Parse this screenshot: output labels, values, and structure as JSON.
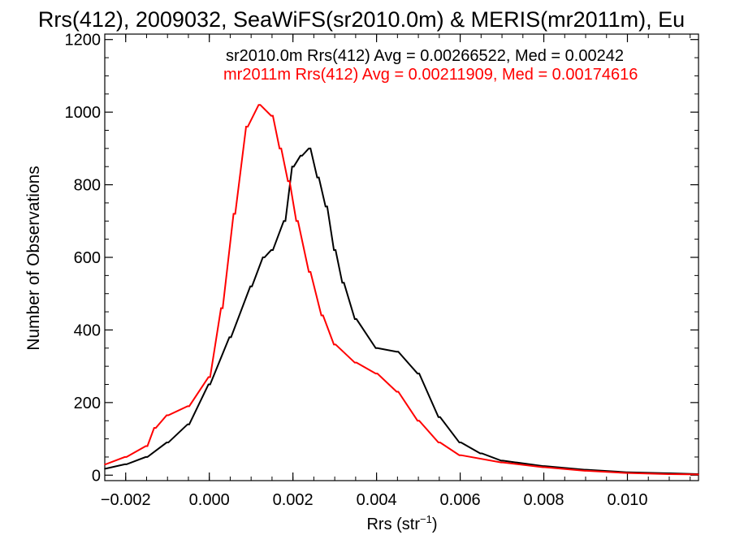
{
  "chart_data": {
    "type": "line",
    "title": "Rrs(412), 2009032, SeaWiFS(sr2010.0m) & MERIS(mr2011m), Eu",
    "xlabel_main": "Rrs (str",
    "xlabel_sup": "−1",
    "xlabel_close": ")",
    "ylabel": "Number of Observations",
    "xlim": [
      -0.0025,
      0.0117
    ],
    "ylim": [
      -15,
      1215
    ],
    "x_ticks": [
      -0.002,
      0.0,
      0.002,
      0.004,
      0.006,
      0.008,
      0.01
    ],
    "x_tick_labels": [
      "−0.002",
      "0.000",
      "0.002",
      "0.004",
      "0.006",
      "0.008",
      "0.010"
    ],
    "y_ticks": [
      0,
      200,
      400,
      600,
      800,
      1000,
      1200
    ],
    "y_tick_labels": [
      "0",
      "200",
      "400",
      "600",
      "800",
      "1000",
      "1200"
    ],
    "grid": false,
    "legend_position": "top-right",
    "annotations": [
      {
        "text": "sr2010.0m Rrs(412) Avg = 0.00266522, Med = 0.00242",
        "color": "#000000"
      },
      {
        "text": "mr2011m Rrs(412) Avg = 0.00211909, Med = 0.00174616",
        "color": "#ff0000"
      }
    ],
    "series": [
      {
        "color": "#000000",
        "x": [
          -0.0025,
          -0.002,
          -0.0015,
          -0.001,
          -0.0005,
          0.0,
          0.0005,
          0.001,
          0.0013,
          0.0015,
          0.0018,
          0.002,
          0.0022,
          0.0024,
          0.0026,
          0.0028,
          0.003,
          0.0032,
          0.0035,
          0.004,
          0.0045,
          0.005,
          0.0055,
          0.006,
          0.0065,
          0.007,
          0.008,
          0.009,
          0.01,
          0.011,
          0.0117
        ],
        "y": [
          18,
          30,
          50,
          90,
          140,
          250,
          380,
          520,
          600,
          620,
          700,
          850,
          880,
          900,
          820,
          740,
          620,
          530,
          430,
          350,
          340,
          280,
          160,
          90,
          60,
          40,
          25,
          15,
          8,
          5,
          3
        ]
      },
      {
        "color": "#ff0000",
        "x": [
          -0.0025,
          -0.002,
          -0.0015,
          -0.0013,
          -0.001,
          -0.0005,
          0.0,
          0.0003,
          0.0006,
          0.0009,
          0.0012,
          0.0015,
          0.0017,
          0.0019,
          0.0021,
          0.0024,
          0.0027,
          0.003,
          0.0035,
          0.004,
          0.0045,
          0.005,
          0.0055,
          0.006,
          0.007,
          0.008,
          0.009,
          0.01,
          0.011,
          0.0117
        ],
        "y": [
          30,
          50,
          80,
          130,
          165,
          190,
          270,
          460,
          720,
          960,
          1020,
          990,
          900,
          810,
          700,
          560,
          440,
          360,
          310,
          280,
          230,
          150,
          90,
          55,
          35,
          22,
          12,
          6,
          3,
          2
        ]
      }
    ]
  }
}
